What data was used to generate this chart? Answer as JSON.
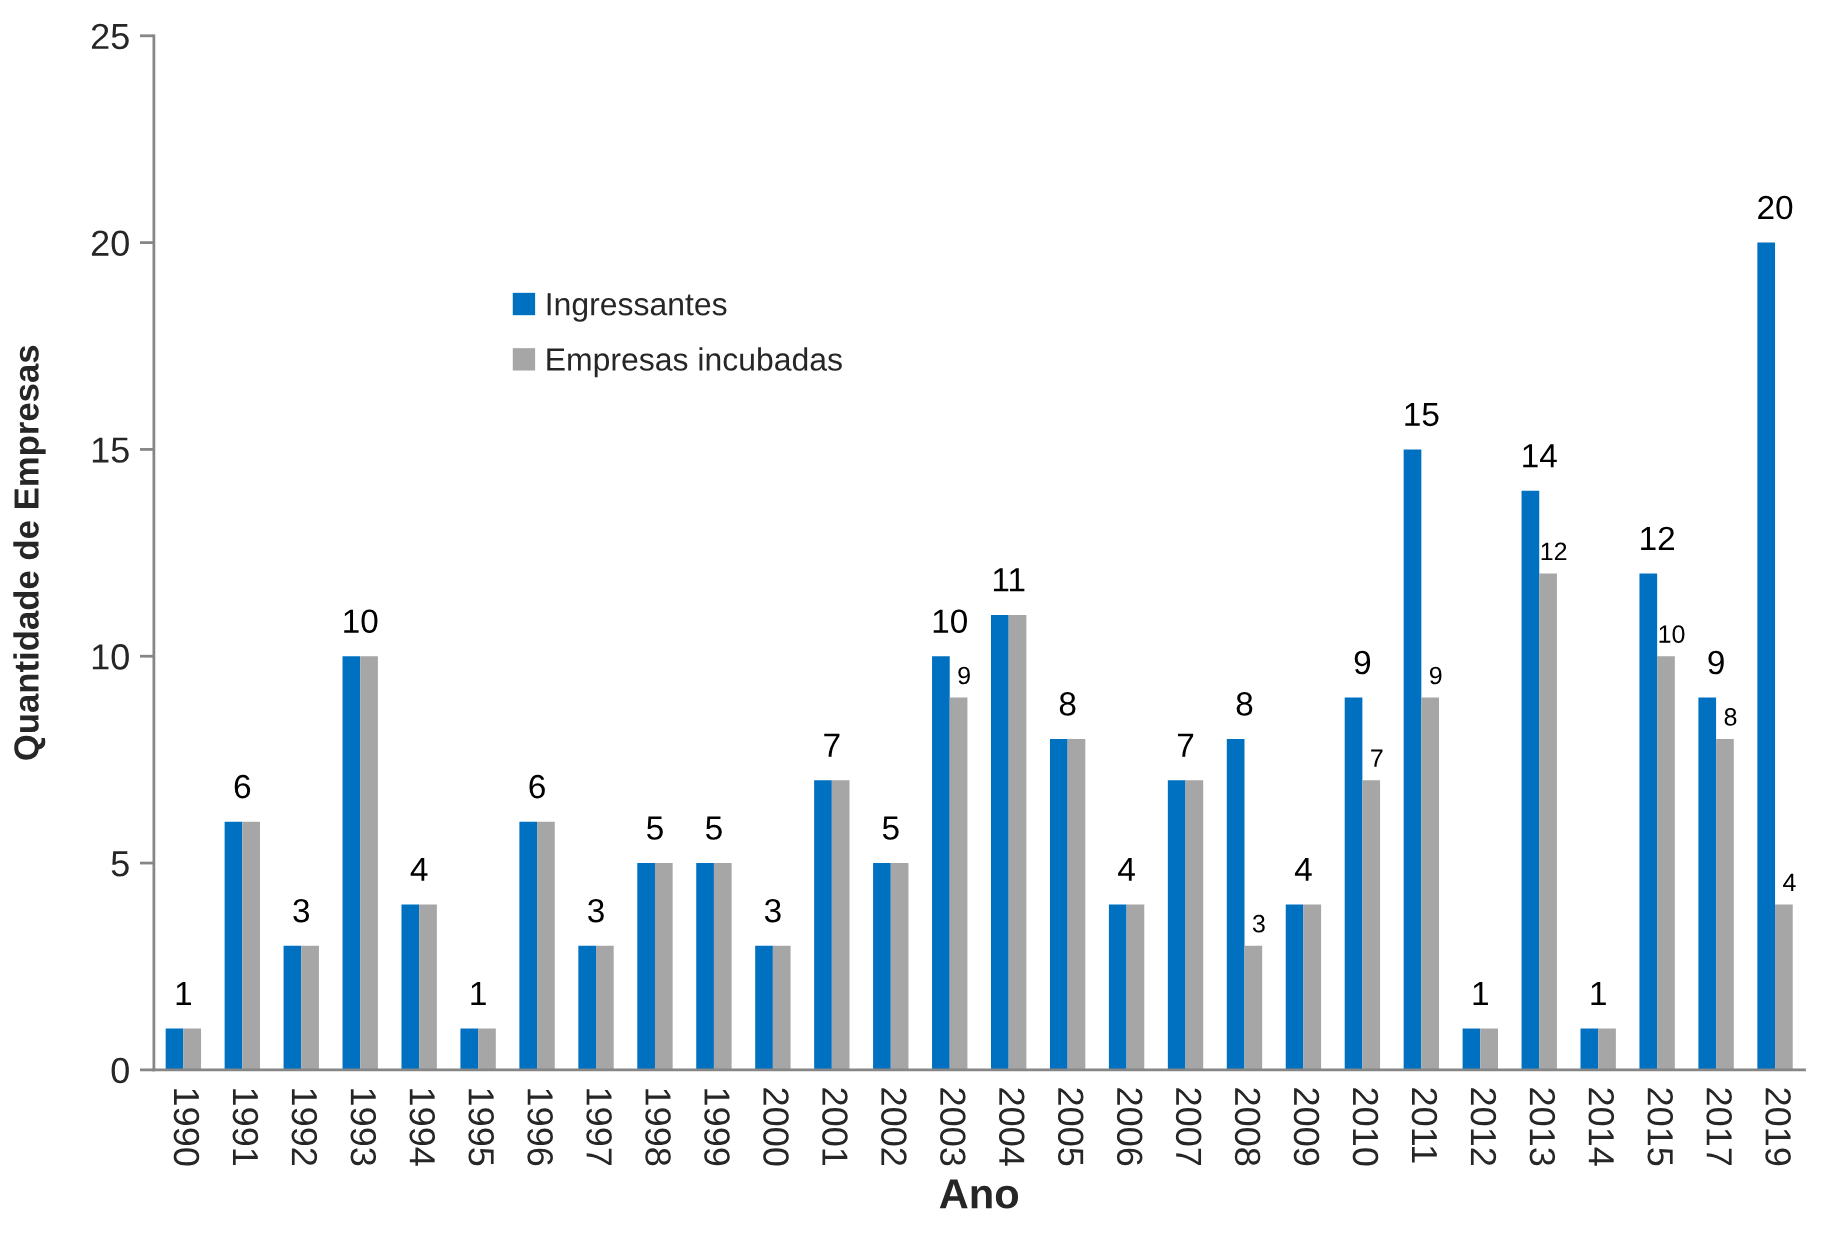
{
  "chart_data": {
    "type": "bar",
    "xlabel": "Ano",
    "ylabel": "Quantidade de Empresas",
    "categories": [
      "1990",
      "1991",
      "1992",
      "1993",
      "1994",
      "1995",
      "1996",
      "1997",
      "1998",
      "1999",
      "2000",
      "2001",
      "2002",
      "2003",
      "2004",
      "2005",
      "2006",
      "2007",
      "2008",
      "2009",
      "2010",
      "2011",
      "2012",
      "2013",
      "2014",
      "2015",
      "2017",
      "2019"
    ],
    "series": [
      {
        "name": "Ingressantes",
        "color": "#0070c0",
        "values": [
          1,
          6,
          3,
          10,
          4,
          1,
          6,
          3,
          5,
          5,
          3,
          7,
          5,
          10,
          11,
          8,
          4,
          7,
          8,
          4,
          9,
          15,
          1,
          14,
          1,
          12,
          9,
          20
        ],
        "value_labels": [
          "1",
          "6",
          "3",
          "10",
          "4",
          "1",
          "6",
          "3",
          "5",
          "5",
          "3",
          "7",
          "5",
          "10",
          "11",
          "8",
          "4",
          "7",
          "8",
          "4",
          "9",
          "15",
          "1",
          "14",
          "1",
          "12",
          "9",
          "20"
        ]
      },
      {
        "name": "Empresas incubadas",
        "color": "#a6a6a6",
        "values": [
          1,
          6,
          3,
          10,
          4,
          1,
          6,
          3,
          5,
          5,
          3,
          7,
          5,
          9,
          11,
          8,
          4,
          7,
          3,
          4,
          7,
          9,
          1,
          12,
          1,
          10,
          8,
          4
        ],
        "value_labels": [
          null,
          null,
          null,
          null,
          null,
          null,
          null,
          null,
          null,
          null,
          null,
          null,
          null,
          "9",
          null,
          null,
          null,
          null,
          "3",
          null,
          "7",
          "9",
          null,
          "12",
          null,
          "10",
          "8",
          "4"
        ]
      }
    ],
    "ylim": [
      0,
      25
    ],
    "yticks": [
      0,
      5,
      10,
      15,
      20,
      25
    ],
    "grid": false,
    "legend": "top left"
  }
}
